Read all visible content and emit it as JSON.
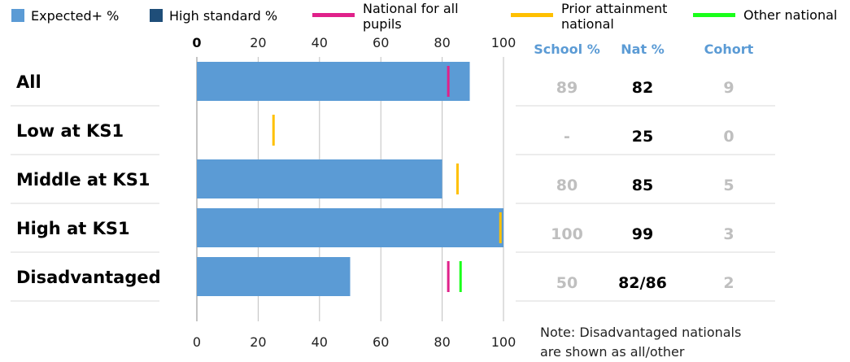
{
  "legend": [
    {
      "label": "Expected+ %",
      "color": "#5b9bd5",
      "kind": "box"
    },
    {
      "label": "High standard %",
      "color": "#1f4e79",
      "kind": "box"
    },
    {
      "label": "National for all pupils",
      "lines": [
        "National for all",
        "pupils"
      ],
      "color": "#e0218a",
      "kind": "line"
    },
    {
      "label": "Prior attainment national",
      "lines": [
        "Prior attainment",
        "national"
      ],
      "color": "#ffc000",
      "kind": "line"
    },
    {
      "label": "Other national",
      "color": "#1aff1a",
      "kind": "line"
    }
  ],
  "table": {
    "headers": [
      "School %",
      "Nat %",
      "Cohort"
    ],
    "rows": [
      {
        "school": "89",
        "nat": "82",
        "cohort": "9"
      },
      {
        "school": "-",
        "nat": "25",
        "cohort": "0"
      },
      {
        "school": "80",
        "nat": "85",
        "cohort": "5"
      },
      {
        "school": "100",
        "nat": "99",
        "cohort": "3"
      },
      {
        "school": "50",
        "nat": "82/86",
        "cohort": "2"
      }
    ]
  },
  "note": "Note: Disadvantaged nationals are shown as all/other",
  "note_lines": [
    "Note: Disadvantaged nationals",
    "are shown as all/other"
  ],
  "chart_data": {
    "type": "bar",
    "orientation": "horizontal",
    "categories": [
      "All",
      "Low at KS1",
      "Middle at KS1",
      "High at KS1",
      "Disadvantaged"
    ],
    "series": [
      {
        "name": "Expected+ %",
        "values": [
          89,
          null,
          80,
          100,
          50
        ],
        "color": "#5b9bd5"
      },
      {
        "name": "High standard %",
        "values": [
          null,
          null,
          null,
          null,
          null
        ],
        "color": "#1f4e79"
      }
    ],
    "markers": [
      {
        "name": "National for all pupils",
        "color": "#e0218a",
        "values": [
          82,
          null,
          null,
          null,
          82
        ]
      },
      {
        "name": "Prior attainment national",
        "color": "#ffc000",
        "values": [
          null,
          25,
          85,
          99,
          null
        ]
      },
      {
        "name": "Other national",
        "color": "#1aff1a",
        "values": [
          null,
          null,
          null,
          null,
          86
        ]
      }
    ],
    "xlim": [
      0,
      100
    ],
    "xticks": [
      0,
      20,
      40,
      60,
      80,
      100
    ],
    "grid": true,
    "legend_position": "top"
  }
}
